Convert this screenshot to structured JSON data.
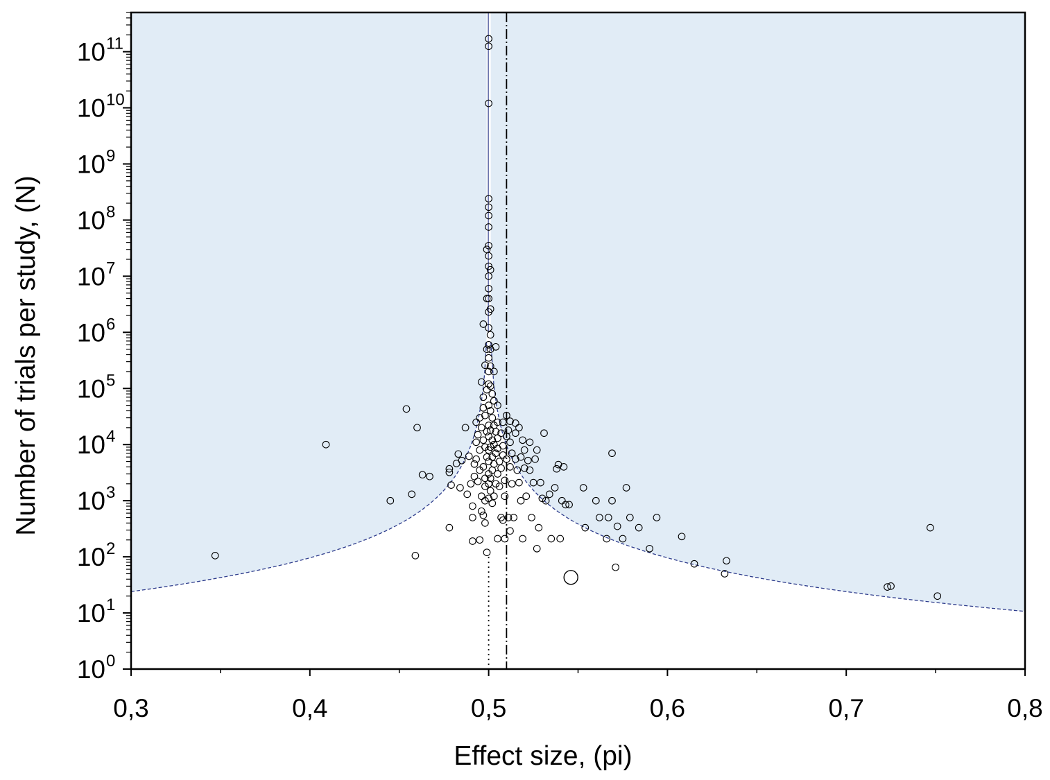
{
  "chart_data": {
    "type": "scatter",
    "title": "",
    "xlabel": "Effect size, (pi)",
    "ylabel": "Number of trials per study, (N)",
    "x_scale": "linear",
    "y_scale": "log",
    "xlim": [
      0.3,
      0.8
    ],
    "ylim": [
      1,
      500000000000
    ],
    "x_ticks": [
      {
        "value": 0.3,
        "label": "0,3"
      },
      {
        "value": 0.4,
        "label": "0,4"
      },
      {
        "value": 0.5,
        "label": "0,5"
      },
      {
        "value": 0.6,
        "label": "0,6"
      },
      {
        "value": 0.7,
        "label": "0,7"
      },
      {
        "value": 0.8,
        "label": "0,8"
      }
    ],
    "y_ticks": [
      {
        "exp": 0,
        "base": "10",
        "sup": "0"
      },
      {
        "exp": 1,
        "base": "10",
        "sup": "1"
      },
      {
        "exp": 2,
        "base": "10",
        "sup": "2"
      },
      {
        "exp": 3,
        "base": "10",
        "sup": "3"
      },
      {
        "exp": 4,
        "base": "10",
        "sup": "4"
      },
      {
        "exp": 5,
        "base": "10",
        "sup": "5"
      },
      {
        "exp": 6,
        "base": "10",
        "sup": "6"
      },
      {
        "exp": 7,
        "base": "10",
        "sup": "7"
      },
      {
        "exp": 8,
        "base": "10",
        "sup": "8"
      },
      {
        "exp": 9,
        "base": "10",
        "sup": "9"
      },
      {
        "exp": 10,
        "base": "10",
        "sup": "10"
      },
      {
        "exp": 11,
        "base": "10",
        "sup": "11"
      }
    ],
    "grid": false,
    "legend": "none",
    "colors": {
      "shade": "#e1ecf6",
      "funnel_line": "#2e3c8c",
      "marker_stroke": "#000000"
    },
    "reference_lines": [
      {
        "style": "dotted",
        "x": 0.5
      },
      {
        "style": "dash-dot",
        "x": 0.51
      }
    ],
    "funnel_curve": {
      "center": 0.5,
      "style": "dashed"
    },
    "large_marker": {
      "x": 0.546,
      "y": 43
    },
    "points": [
      [
        0.347,
        105
      ],
      [
        0.409,
        10000
      ],
      [
        0.445,
        1000
      ],
      [
        0.454,
        43000
      ],
      [
        0.457,
        1300
      ],
      [
        0.459,
        105
      ],
      [
        0.46,
        20000
      ],
      [
        0.463,
        2900
      ],
      [
        0.467,
        2700
      ],
      [
        0.478,
        3200
      ],
      [
        0.478,
        3700
      ],
      [
        0.478,
        330
      ],
      [
        0.479,
        1900
      ],
      [
        0.482,
        4600
      ],
      [
        0.483,
        6800
      ],
      [
        0.484,
        1700
      ],
      [
        0.485,
        5200
      ],
      [
        0.487,
        20000
      ],
      [
        0.488,
        1300
      ],
      [
        0.489,
        6200
      ],
      [
        0.49,
        2000
      ],
      [
        0.491,
        800
      ],
      [
        0.491,
        500
      ],
      [
        0.491,
        190
      ],
      [
        0.492,
        2700
      ],
      [
        0.492,
        4500
      ],
      [
        0.493,
        11000
      ],
      [
        0.493,
        25000
      ],
      [
        0.493,
        5500
      ],
      [
        0.494,
        2200
      ],
      [
        0.494,
        15000
      ],
      [
        0.495,
        30000
      ],
      [
        0.495,
        8000
      ],
      [
        0.495,
        3500
      ],
      [
        0.495,
        200
      ],
      [
        0.496,
        650
      ],
      [
        0.496,
        1200
      ],
      [
        0.496,
        20000
      ],
      [
        0.496,
        130000
      ],
      [
        0.497,
        70000
      ],
      [
        0.497,
        45000
      ],
      [
        0.497,
        12000
      ],
      [
        0.497,
        1400000
      ],
      [
        0.497,
        4000
      ],
      [
        0.497,
        550
      ],
      [
        0.498,
        9000
      ],
      [
        0.498,
        2500
      ],
      [
        0.498,
        1800
      ],
      [
        0.498,
        1000
      ],
      [
        0.498,
        33000
      ],
      [
        0.498,
        260000
      ],
      [
        0.498,
        400
      ],
      [
        0.499,
        6000
      ],
      [
        0.499,
        17000
      ],
      [
        0.499,
        95000
      ],
      [
        0.499,
        500000
      ],
      [
        0.499,
        4000000
      ],
      [
        0.499,
        30000000
      ],
      [
        0.499,
        120
      ],
      [
        0.5,
        170000000000.0
      ],
      [
        0.5,
        125000000000.0
      ],
      [
        0.5,
        12000000000.0
      ],
      [
        0.5,
        240000000.0
      ],
      [
        0.5,
        170000000.0
      ],
      [
        0.5,
        120000000.0
      ],
      [
        0.5,
        75000000.0
      ],
      [
        0.5,
        35000000.0
      ],
      [
        0.5,
        23000000.0
      ],
      [
        0.5,
        15000000.0
      ],
      [
        0.5,
        10000000.0
      ],
      [
        0.5,
        6000000.0
      ],
      [
        0.5,
        4000000.0
      ],
      [
        0.5,
        2300000.0
      ],
      [
        0.5,
        1200000.0
      ],
      [
        0.5,
        600000.0
      ],
      [
        0.5,
        350000.0
      ],
      [
        0.5,
        200000.0
      ],
      [
        0.5,
        120000.0
      ],
      [
        0.5,
        50000
      ],
      [
        0.5,
        22000
      ],
      [
        0.5,
        14000
      ],
      [
        0.5,
        8000
      ],
      [
        0.5,
        5000
      ],
      [
        0.5,
        3000
      ],
      [
        0.5,
        2000
      ],
      [
        0.5,
        1100
      ],
      [
        0.501,
        13000000.0
      ],
      [
        0.501,
        2600000.0
      ],
      [
        0.501,
        900000.0
      ],
      [
        0.501,
        500000.0
      ],
      [
        0.501,
        250000.0
      ],
      [
        0.501,
        110000.0
      ],
      [
        0.501,
        40000
      ],
      [
        0.501,
        18000
      ],
      [
        0.501,
        9000
      ],
      [
        0.501,
        2500
      ],
      [
        0.501,
        1500
      ],
      [
        0.502,
        80000
      ],
      [
        0.502,
        30000
      ],
      [
        0.502,
        12000
      ],
      [
        0.502,
        6000
      ],
      [
        0.502,
        3500
      ],
      [
        0.502,
        900
      ],
      [
        0.503,
        200000
      ],
      [
        0.503,
        60000
      ],
      [
        0.503,
        22000
      ],
      [
        0.503,
        10000
      ],
      [
        0.503,
        4500
      ],
      [
        0.503,
        1200
      ],
      [
        0.504,
        550000
      ],
      [
        0.504,
        17000
      ],
      [
        0.504,
        7000
      ],
      [
        0.504,
        2000
      ],
      [
        0.505,
        50000
      ],
      [
        0.505,
        25000
      ],
      [
        0.505,
        13000
      ],
      [
        0.505,
        8500
      ],
      [
        0.505,
        3000
      ],
      [
        0.505,
        210
      ],
      [
        0.506,
        1800
      ],
      [
        0.506,
        5000
      ],
      [
        0.507,
        500
      ],
      [
        0.507,
        16000
      ],
      [
        0.507,
        3800
      ],
      [
        0.508,
        25000
      ],
      [
        0.508,
        9500
      ],
      [
        0.508,
        6500
      ],
      [
        0.508,
        450
      ],
      [
        0.509,
        2300
      ],
      [
        0.509,
        1200
      ],
      [
        0.509,
        210
      ],
      [
        0.51,
        33000
      ],
      [
        0.51,
        14000
      ],
      [
        0.51,
        5500
      ],
      [
        0.511,
        18000
      ],
      [
        0.511,
        500
      ],
      [
        0.512,
        26000
      ],
      [
        0.512,
        11000
      ],
      [
        0.512,
        4000
      ],
      [
        0.512,
        290
      ],
      [
        0.513,
        7000
      ],
      [
        0.513,
        2000
      ],
      [
        0.514,
        500
      ],
      [
        0.515,
        24000
      ],
      [
        0.515,
        16000
      ],
      [
        0.515,
        5500
      ],
      [
        0.516,
        3500
      ],
      [
        0.517,
        20000
      ],
      [
        0.517,
        2100
      ],
      [
        0.518,
        1000
      ],
      [
        0.518,
        6000
      ],
      [
        0.519,
        12000
      ],
      [
        0.519,
        210
      ],
      [
        0.52,
        8000
      ],
      [
        0.52,
        3800
      ],
      [
        0.521,
        1200
      ],
      [
        0.522,
        5200
      ],
      [
        0.523,
        11000
      ],
      [
        0.523,
        3500
      ],
      [
        0.524,
        500
      ],
      [
        0.525,
        2100
      ],
      [
        0.526,
        5500
      ],
      [
        0.527,
        8000
      ],
      [
        0.527,
        140
      ],
      [
        0.528,
        330
      ],
      [
        0.529,
        2100
      ],
      [
        0.53,
        1100
      ],
      [
        0.531,
        16000
      ],
      [
        0.532,
        1000
      ],
      [
        0.534,
        1300
      ],
      [
        0.535,
        210
      ],
      [
        0.537,
        1700
      ],
      [
        0.538,
        3700
      ],
      [
        0.539,
        4400
      ],
      [
        0.54,
        210
      ],
      [
        0.541,
        1000
      ],
      [
        0.542,
        4000
      ],
      [
        0.543,
        850
      ],
      [
        0.545,
        850
      ],
      [
        0.553,
        1700
      ],
      [
        0.554,
        330
      ],
      [
        0.56,
        1000
      ],
      [
        0.562,
        500
      ],
      [
        0.566,
        210
      ],
      [
        0.567,
        500
      ],
      [
        0.569,
        7000
      ],
      [
        0.569,
        1000
      ],
      [
        0.571,
        65
      ],
      [
        0.572,
        350
      ],
      [
        0.575,
        210
      ],
      [
        0.577,
        1700
      ],
      [
        0.579,
        500
      ],
      [
        0.584,
        330
      ],
      [
        0.59,
        140
      ],
      [
        0.594,
        500
      ],
      [
        0.608,
        230
      ],
      [
        0.615,
        75
      ],
      [
        0.632,
        50
      ],
      [
        0.633,
        85
      ],
      [
        0.723,
        29
      ],
      [
        0.725,
        30
      ],
      [
        0.747,
        330
      ],
      [
        0.751,
        20
      ]
    ]
  }
}
